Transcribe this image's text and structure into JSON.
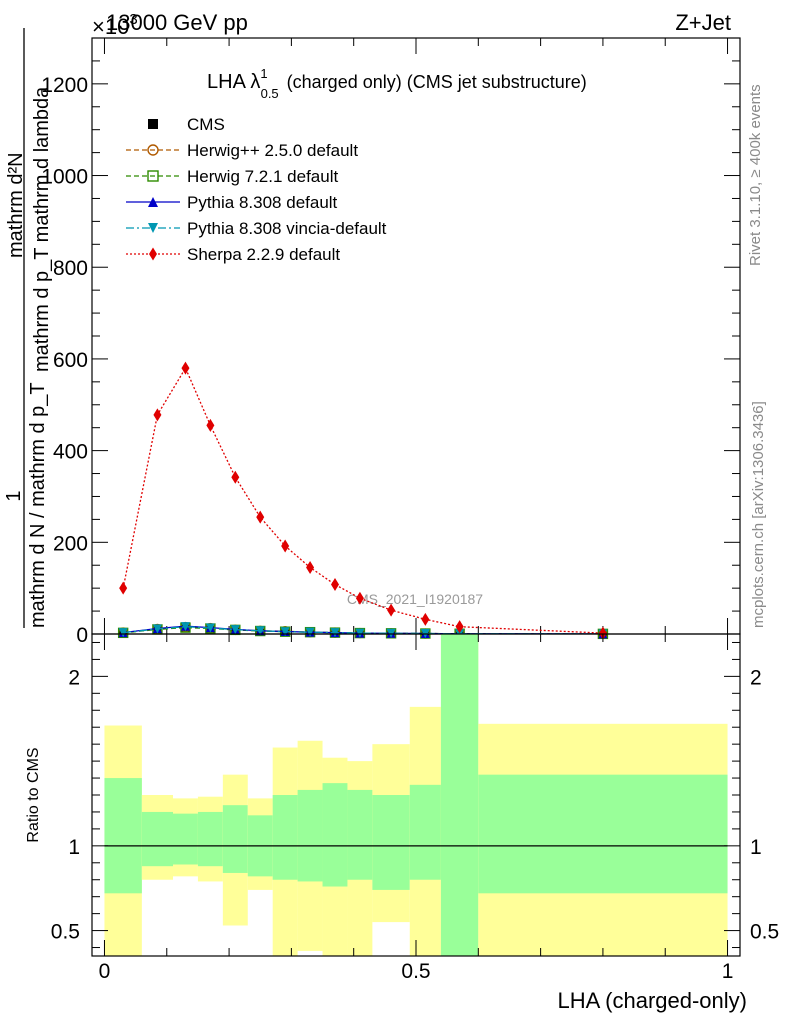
{
  "header": {
    "left": "13000 GeV pp",
    "right": "Z+Jet",
    "multiplier": "×10",
    "multiplier_exp": "3"
  },
  "side_labels": {
    "rivet": "Rivet 3.1.10, ≥ 400k events",
    "mcplots": "mcplots.cern.ch [arXiv:1306.3436]"
  },
  "watermark": "CMS_2021_I1920187",
  "colors": {
    "cms": "#000000",
    "herwigpp": "#b05a00",
    "herwig7": "#2e8b00",
    "pythia": "#0000c8",
    "vincia": "#0097b2",
    "sherpa": "#e00000",
    "band_inner": "#99ff99",
    "band_outer": "#ffff99"
  },
  "chart_data": [
    {
      "type": "line",
      "title_main": "LHA λ",
      "title_sup": "1",
      "title_sub": "0.5",
      "title_rest": "(charged only) (CMS jet substructure)",
      "ylabel_top": "mathrm d²N",
      "ylabel_mid": "mathrm d p_T mathrm d lambda",
      "ylabel_one": "1",
      "ylabel_bot": "mathrm d N / mathrm d p_T",
      "xlim": [
        -0.02,
        1.02
      ],
      "ylim": [
        0,
        1300
      ],
      "y_unit_note": "values ×10^3",
      "yticks": [
        0,
        200,
        400,
        600,
        800,
        1000,
        1200
      ],
      "ytick_labels": [
        "0",
        "200",
        "400",
        "600",
        "800",
        "1000",
        "1200"
      ],
      "legend": [
        {
          "key": "cms",
          "label": "CMS"
        },
        {
          "key": "herwigpp",
          "label": "Herwig++ 2.5.0 default"
        },
        {
          "key": "herwig7",
          "label": "Herwig 7.2.1 default"
        },
        {
          "key": "pythia",
          "label": "Pythia 8.308 default"
        },
        {
          "key": "vincia",
          "label": "Pythia 8.308 vincia-default"
        },
        {
          "key": "sherpa",
          "label": "Sherpa 2.2.9 default"
        }
      ],
      "x": [
        0.03,
        0.085,
        0.13,
        0.17,
        0.21,
        0.25,
        0.29,
        0.33,
        0.37,
        0.41,
        0.46,
        0.515,
        0.57,
        0.8
      ],
      "series": [
        {
          "key": "cms",
          "values": [
            2,
            9,
            13,
            11,
            8,
            6,
            5,
            4,
            3,
            2,
            1.5,
            1,
            0.5,
            0.3
          ]
        },
        {
          "key": "herwigpp",
          "values": [
            3,
            11,
            15,
            13,
            9,
            7,
            6,
            4,
            3,
            2,
            1.5,
            1,
            0.5,
            0.3
          ]
        },
        {
          "key": "herwig7",
          "values": [
            2.5,
            10,
            14,
            12,
            9,
            6.5,
            5,
            4,
            3,
            2,
            1.5,
            1,
            0.5,
            0.3
          ]
        },
        {
          "key": "pythia",
          "values": [
            3,
            12,
            17,
            14,
            10,
            7,
            5.5,
            4,
            3,
            2,
            1.5,
            1,
            0.5,
            0.3
          ]
        },
        {
          "key": "vincia",
          "values": [
            3,
            11,
            16,
            13,
            9.5,
            7,
            5,
            4,
            3,
            2,
            1.5,
            1,
            0.5,
            0.3
          ]
        },
        {
          "key": "sherpa",
          "values": [
            100,
            478,
            580,
            455,
            342,
            255,
            192,
            145,
            108,
            78,
            52,
            32,
            16,
            2
          ]
        }
      ]
    },
    {
      "type": "area",
      "ylabel": "Ratio to CMS",
      "xlabel": "LHA (charged-only)",
      "xlim": [
        -0.02,
        1.02
      ],
      "ylim": [
        0.35,
        2.25
      ],
      "xticks": [
        0,
        0.5,
        1
      ],
      "xtick_labels": [
        "0",
        "0.5",
        "1"
      ],
      "yticks": [
        0.5,
        1,
        2
      ],
      "ytick_labels": [
        "0.5",
        "1",
        "2"
      ],
      "reference_line": 1,
      "bin_edges": [
        0,
        0.06,
        0.11,
        0.15,
        0.19,
        0.23,
        0.27,
        0.31,
        0.35,
        0.39,
        0.43,
        0.49,
        0.54,
        0.6,
        1.0
      ],
      "inner_low": [
        0.72,
        0.88,
        0.89,
        0.88,
        0.84,
        0.82,
        0.8,
        0.79,
        0.76,
        0.8,
        0.74,
        0.8,
        0.35,
        0.72
      ],
      "inner_high": [
        1.4,
        1.2,
        1.19,
        1.2,
        1.24,
        1.18,
        1.3,
        1.33,
        1.37,
        1.33,
        1.3,
        1.36,
        2.25,
        1.42
      ],
      "outer_low": [
        0.35,
        0.8,
        0.82,
        0.79,
        0.53,
        0.74,
        0.35,
        0.38,
        0.35,
        0.35,
        0.55,
        0.35,
        0.35,
        0.35
      ],
      "outer_high": [
        1.71,
        1.3,
        1.28,
        1.29,
        1.42,
        1.28,
        1.58,
        1.62,
        1.52,
        1.5,
        1.6,
        1.82,
        2.25,
        1.72
      ]
    }
  ]
}
